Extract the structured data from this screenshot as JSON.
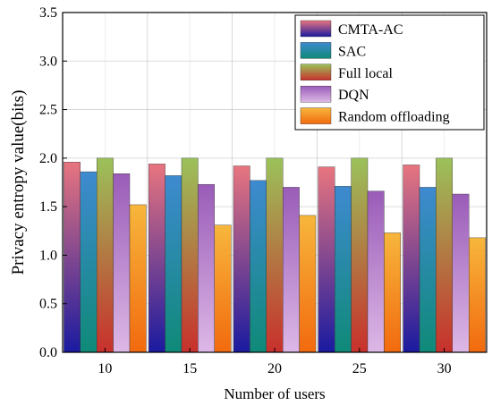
{
  "chart_data": {
    "type": "bar",
    "title": "",
    "xlabel": "Number of users",
    "ylabel": "Privacy entropy value(bits)",
    "categories": [
      "10",
      "15",
      "20",
      "25",
      "30"
    ],
    "ylim": [
      0,
      3.5
    ],
    "yticks": [
      "0.0",
      "0.5",
      "1.0",
      "1.5",
      "2.0",
      "2.5",
      "3.0",
      "3.5"
    ],
    "grid": true,
    "legend_position": "top-right",
    "series": [
      {
        "name": "CMTA-AC",
        "values": [
          1.96,
          1.94,
          1.92,
          1.91,
          1.93
        ],
        "color_top": "#e8757f",
        "color_bottom": "#1a1aa0"
      },
      {
        "name": "SAC",
        "values": [
          1.86,
          1.82,
          1.77,
          1.71,
          1.7
        ],
        "color_top": "#3e8ad0",
        "color_bottom": "#0f8a78"
      },
      {
        "name": "Full local",
        "values": [
          2.0,
          2.0,
          2.0,
          2.0,
          2.0
        ],
        "color_top": "#9bc25a",
        "color_bottom": "#c9302c"
      },
      {
        "name": "DQN",
        "values": [
          1.84,
          1.73,
          1.7,
          1.66,
          1.63
        ],
        "color_top": "#9a5cb8",
        "color_bottom": "#ddb8e6"
      },
      {
        "name": "Random offloading",
        "values": [
          1.52,
          1.31,
          1.41,
          1.23,
          1.18
        ],
        "color_top": "#f7b63c",
        "color_bottom": "#f26a0e"
      }
    ]
  }
}
